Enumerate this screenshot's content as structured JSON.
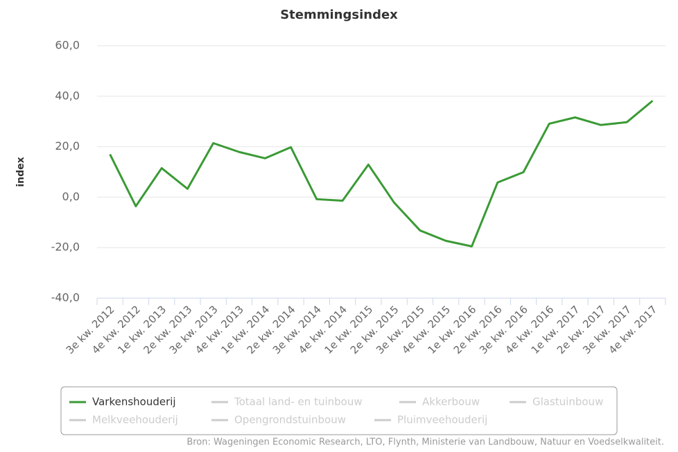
{
  "chart_data": {
    "type": "line",
    "title": "Stemmingsindex",
    "y_label": "index",
    "categories": [
      "3e kw. 2012",
      "4e kw. 2012",
      "1e kw. 2013",
      "2e kw. 2013",
      "3e kw. 2013",
      "4e kw. 2013",
      "1e kw. 2014",
      "2e kw. 2014",
      "3e kw. 2014",
      "4e kw. 2014",
      "1e kw. 2015",
      "2e kw. 2015",
      "3e kw. 2015",
      "4e kw. 2015",
      "1e kw. 2016",
      "2e kw. 2016",
      "3e kw. 2016",
      "4e kw. 2016",
      "1e kw. 2017",
      "2e kw. 2017",
      "3e kw. 2017",
      "4e kw. 2017"
    ],
    "series": [
      {
        "name": "Varkenshouderij",
        "color": "#3a9a35",
        "values": [
          17.0,
          -3.6,
          11.5,
          3.3,
          21.4,
          17.9,
          15.4,
          19.8,
          -0.8,
          -1.4,
          12.9,
          -2.2,
          -13.2,
          -17.3,
          -19.5,
          5.8,
          9.9,
          29.1,
          31.6,
          28.6,
          29.7,
          38.2
        ]
      }
    ],
    "hidden_series": [
      "Totaal land- en tuinbouw",
      "Akkerbouw",
      "Glastuinbouw",
      "Melkveehouderij",
      "Opengrondstuinbouw",
      "Pluimveehouderij"
    ],
    "ylim": [
      -40,
      60
    ],
    "yticks": [
      {
        "value": -40,
        "label": "-40,0"
      },
      {
        "value": -20,
        "label": "-20,0"
      },
      {
        "value": 0,
        "label": "0,0"
      },
      {
        "value": 20,
        "label": "20,0"
      },
      {
        "value": 40,
        "label": "40,0"
      },
      {
        "value": 60,
        "label": "60,0"
      }
    ],
    "grid": true,
    "source": "Bron: Wageningen Economic Research, LTO, Flynth, Ministerie van Landbouw, Natuur en Voedselkwaliteit."
  }
}
